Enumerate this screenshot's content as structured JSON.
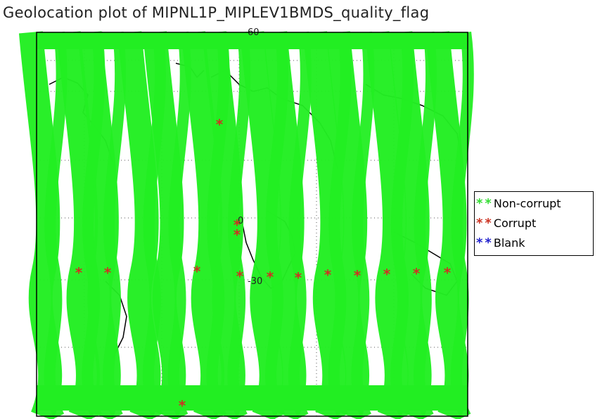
{
  "title": "Geolocation plot of MIPNL1P_MIPLEV1BMDS_quality_flag",
  "map": {
    "lat_label_top": "60",
    "lat_label_equator": "0",
    "lat_label_south": "-30",
    "track_color": "#22ee22",
    "land_color": "#000000",
    "grid_color": "#555555"
  },
  "legend": {
    "items": [
      {
        "label": "Non-corrupt",
        "color": "#33dd33",
        "icon": "asterisk-icon"
      },
      {
        "label": "Corrupt",
        "color": "#cc3322",
        "icon": "asterisk-icon"
      },
      {
        "label": "Blank",
        "color": "#2222cc",
        "icon": "asterisk-icon"
      }
    ]
  },
  "chart_data": {
    "type": "scatter",
    "title": "Geolocation plot of MIPNL1P_MIPLEV1BMDS_quality_flag",
    "series": [
      {
        "name": "Non-corrupt",
        "color": "#33dd33",
        "points": "dense orbital tracks"
      },
      {
        "name": "Corrupt",
        "color": "#cc3322"
      },
      {
        "name": "Blank",
        "color": "#2222cc",
        "points": []
      }
    ]
  }
}
